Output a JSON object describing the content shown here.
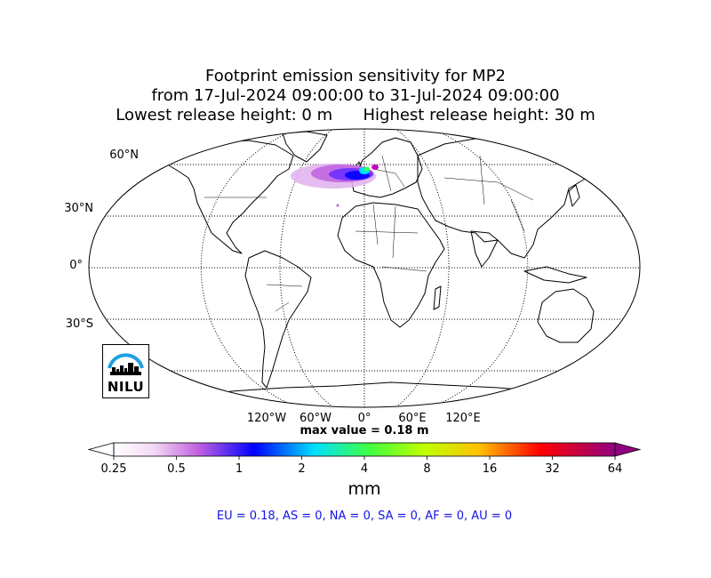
{
  "title": {
    "line1": "Footprint emission sensitivity for MP2",
    "line2": "from 17-Jul-2024 09:00:00 to 31-Jul-2024 09:00:00",
    "line3a": "Lowest release height: 0 m",
    "line3b": "Highest release height: 30 m"
  },
  "map": {
    "projection": "Robinson",
    "graticule": "dotted",
    "lat_labels": [
      "60°N",
      "30°N",
      "0°",
      "30°S"
    ],
    "lon_labels": [
      "120°W",
      "60°W",
      "0°",
      "60°E",
      "120°E"
    ]
  },
  "max_value_text": "max value = 0.18 m",
  "colorbar": {
    "ticks": [
      "0.25",
      "0.5",
      "1",
      "2",
      "4",
      "8",
      "16",
      "32",
      "64"
    ],
    "label": "mm",
    "colors": [
      "#ffffff",
      "#c060e0",
      "#0000ff",
      "#00e0ff",
      "#40ff40",
      "#c0ff00",
      "#ffc000",
      "#ff0000",
      "#900080"
    ]
  },
  "summary": "EU = 0.18,  AS = 0,  NA = 0,  SA = 0,  AF = 0,  AU = 0",
  "logo": {
    "text": "NILU",
    "accent": "#1ea0e0"
  }
}
